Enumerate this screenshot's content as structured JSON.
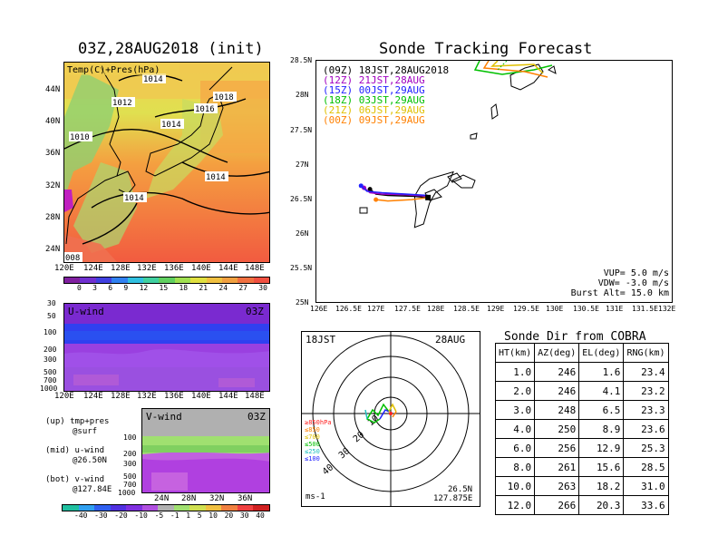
{
  "left": {
    "title": "03Z,28AUG2018 (init)",
    "temp_panel": {
      "label": "Temp(C)+Pres(hPa)",
      "yticks": [
        "44N",
        "40N",
        "36N",
        "32N",
        "28N",
        "24N"
      ],
      "xticks": [
        "120E",
        "124E",
        "128E",
        "132E",
        "136E",
        "140E",
        "144E",
        "148E"
      ],
      "isobar_labels": [
        "1014",
        "1012",
        "1018",
        "1016",
        "1014",
        "1010",
        "1014",
        "1014",
        "008"
      ],
      "colorbar_ticks": [
        "0",
        "3",
        "6",
        "9",
        "12",
        "15",
        "18",
        "21",
        "24",
        "27",
        "30"
      ]
    },
    "u_panel": {
      "label": "U-wind",
      "time": "03Z",
      "yticks": [
        "30",
        "50",
        "100",
        "200",
        "300",
        "500",
        "700",
        "1000"
      ],
      "xticks": [
        "120E",
        "124E",
        "128E",
        "132E",
        "136E",
        "140E",
        "144E",
        "148E"
      ]
    },
    "v_panel": {
      "label": "V-wind",
      "time": "03Z",
      "yticks": [
        "100",
        "200",
        "300",
        "500",
        "700",
        "1000"
      ],
      "xticks": [
        "24N",
        "28N",
        "32N",
        "36N"
      ]
    },
    "notes": [
      "(up) tmp+pres",
      "@surf",
      "(mid) u-wind",
      "@26.50N",
      "(bot) v-wind",
      "@127.84E"
    ],
    "wind_colorbar_ticks": [
      "-40",
      "-30",
      "-20",
      "-10",
      "-5",
      "-1",
      "1",
      "5",
      "10",
      "20",
      "30",
      "40"
    ]
  },
  "tracking": {
    "title": "Sonde Tracking Forecast",
    "yticks": [
      "28.5N",
      "28N",
      "27.5N",
      "27N",
      "26.5N",
      "26N",
      "25.5N",
      "25N"
    ],
    "xticks": [
      "126E",
      "126.5E",
      "127E",
      "127.5E",
      "128E",
      "128.5E",
      "129E",
      "129.5E",
      "130E",
      "130.5E",
      "131E",
      "131.5E",
      "132E"
    ],
    "legend": [
      {
        "code": "(09Z)",
        "time": "18JST,28AUG2018",
        "color": "#000000"
      },
      {
        "code": "(12Z)",
        "time": "21JST,28AUG",
        "color": "#a000c0"
      },
      {
        "code": "(15Z)",
        "time": "00JST,29AUG",
        "color": "#2020ff"
      },
      {
        "code": "(18Z)",
        "time": "03JST,29AUG",
        "color": "#00c000"
      },
      {
        "code": "(21Z)",
        "time": "06JST,29AUG",
        "color": "#e0c000"
      },
      {
        "code": "(00Z)",
        "time": "09JST,29AUG",
        "color": "#ff8000"
      }
    ],
    "params": [
      "VUP= 5.0 m/s",
      "VDW= -3.0 m/s",
      "Burst Alt= 15.0 km"
    ]
  },
  "hodograph": {
    "time_left": "18JST",
    "date_right": "28AUG",
    "ring_labels": [
      "10",
      "20",
      "30",
      "40"
    ],
    "levels": [
      {
        "label": "≥850hPa",
        "color": "#ff2020"
      },
      {
        "label": "≤850",
        "color": "#ff8000"
      },
      {
        "label": "≤700",
        "color": "#e0c000"
      },
      {
        "label": "≤500",
        "color": "#00c000"
      },
      {
        "label": "≤250",
        "color": "#20c0c0"
      },
      {
        "label": "≤100",
        "color": "#2020ff"
      }
    ],
    "unit": "ms-1",
    "lat": "26.5N",
    "lon": "127.875E"
  },
  "direction_table": {
    "title": "Sonde Dir from COBRA",
    "headers": [
      "HT(km)",
      "AZ(deg)",
      "EL(deg)",
      "RNG(km)"
    ],
    "rows": [
      [
        "1.0",
        "246",
        "1.6",
        "23.4"
      ],
      [
        "2.0",
        "246",
        "4.1",
        "23.2"
      ],
      [
        "3.0",
        "248",
        "6.5",
        "23.3"
      ],
      [
        "4.0",
        "250",
        "8.9",
        "23.6"
      ],
      [
        "6.0",
        "256",
        "12.9",
        "25.3"
      ],
      [
        "8.0",
        "261",
        "15.6",
        "28.5"
      ],
      [
        "10.0",
        "263",
        "18.2",
        "31.0"
      ],
      [
        "12.0",
        "266",
        "20.3",
        "33.6"
      ]
    ]
  },
  "chart_data": [
    {
      "type": "table",
      "title": "Sonde Dir from COBRA",
      "columns": [
        "HT(km)",
        "AZ(deg)",
        "EL(deg)",
        "RNG(km)"
      ],
      "rows": [
        [
          1.0,
          246,
          1.6,
          23.4
        ],
        [
          2.0,
          246,
          4.1,
          23.2
        ],
        [
          3.0,
          248,
          6.5,
          23.3
        ],
        [
          4.0,
          250,
          8.9,
          23.6
        ],
        [
          6.0,
          256,
          12.9,
          25.3
        ],
        [
          8.0,
          261,
          15.6,
          28.5
        ],
        [
          10.0,
          263,
          18.2,
          31.0
        ],
        [
          12.0,
          266,
          20.3,
          33.6
        ]
      ]
    },
    {
      "type": "line",
      "title": "Sonde Tracking Forecast",
      "xlim": [
        126,
        132
      ],
      "ylim": [
        25,
        28.5
      ],
      "series": [
        {
          "name": "(09Z)",
          "x": [
            127.875,
            127.6,
            127.2,
            127.0,
            126.9
          ],
          "y": [
            26.53,
            26.55,
            26.56,
            26.58,
            26.65
          ]
        },
        {
          "name": "(12Z)",
          "x": [
            127.875,
            127.5,
            127.1,
            126.9,
            126.8
          ],
          "y": [
            26.55,
            26.57,
            26.58,
            26.6,
            26.67
          ]
        },
        {
          "name": "(15Z)",
          "x": [
            127.875,
            127.5,
            127.1,
            126.85,
            126.75
          ],
          "y": [
            26.56,
            26.58,
            26.6,
            26.62,
            26.7
          ]
        },
        {
          "name": "(00Z)",
          "x": [
            127.875,
            127.6,
            127.2,
            127.0
          ],
          "y": [
            26.53,
            26.5,
            26.48,
            26.5
          ]
        }
      ]
    }
  ]
}
